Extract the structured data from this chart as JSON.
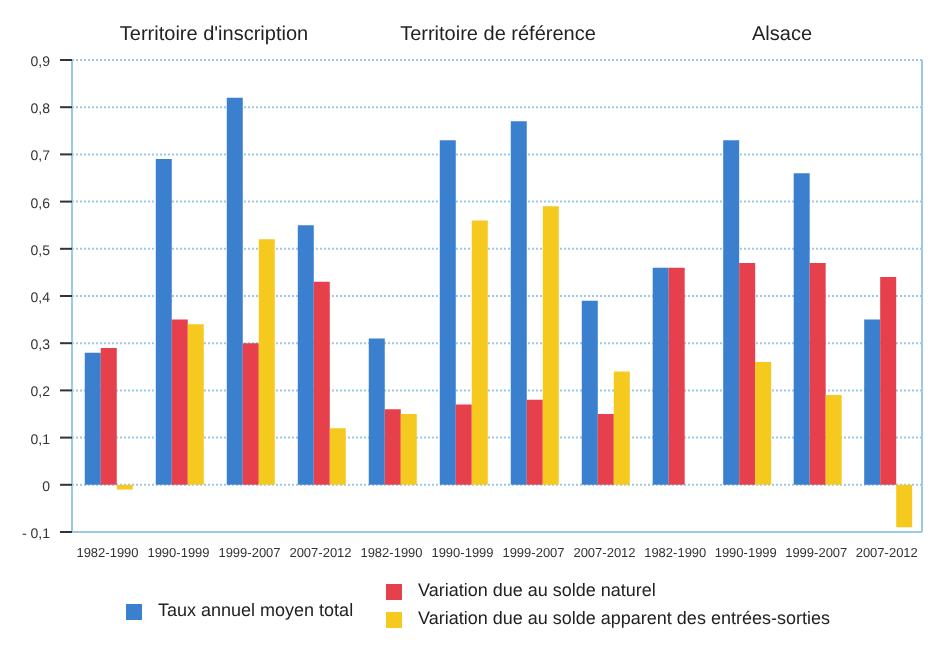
{
  "chart_data": [
    {
      "type": "bar",
      "title": "Territoire d'inscription",
      "categories": [
        "1982-1990",
        "1990-1999",
        "1999-2007",
        "2007-2012"
      ],
      "series": [
        {
          "name": "Taux annuel moyen total",
          "color": "#3a80cf",
          "values": [
            0.28,
            0.69,
            0.82,
            0.55
          ]
        },
        {
          "name": "Variation due au solde naturel",
          "color": "#e5404b",
          "values": [
            0.29,
            0.35,
            0.3,
            0.43
          ]
        },
        {
          "name": "Variation due au solde apparent des entrées-sorties",
          "color": "#f5c91e",
          "values": [
            -0.01,
            0.34,
            0.52,
            0.12
          ]
        }
      ],
      "ylim": [
        -0.1,
        0.9
      ],
      "yticks": [
        {
          "value": -0.1,
          "label": "- 0,1"
        },
        0,
        {
          "value": 0.1,
          "label": "0,1"
        },
        {
          "value": 0.2,
          "label": "0,2"
        },
        {
          "value": 0.3,
          "label": "0,3"
        },
        {
          "value": 0.4,
          "label": "0,4"
        },
        {
          "value": 0.5,
          "label": "0,5"
        },
        {
          "value": 0.6,
          "label": "0,6"
        },
        {
          "value": 0.7,
          "label": "0,7"
        },
        {
          "value": 0.8,
          "label": "0,8"
        },
        {
          "value": 0.9,
          "label": "0,9"
        }
      ],
      "grid": "y",
      "legend": "bottom"
    },
    {
      "type": "bar",
      "title": "Territoire de référence",
      "categories": [
        "1982-1990",
        "1990-1999",
        "1999-2007",
        "2007-2012"
      ],
      "series": [
        {
          "color": "#3a80cf",
          "values": [
            0.31,
            0.73,
            0.77,
            0.39
          ]
        },
        {
          "color": "#e5404b",
          "values": [
            0.16,
            0.17,
            0.18,
            0.15
          ]
        },
        {
          "color": "#f5c91e",
          "values": [
            0.15,
            0.56,
            0.59,
            0.24
          ]
        }
      ],
      "ylim": [
        -0.1,
        0.9
      ],
      "yticks": [
        -0.1,
        0,
        0.1,
        0.2,
        0.3,
        0.4,
        0.5,
        0.6,
        0.7,
        0.8,
        0.9
      ],
      "grid": "y",
      "tick_labels": "x"
    },
    {
      "type": "bar",
      "title": "Alsace",
      "categories": [
        "1982-1990",
        "1990-1999",
        "1999-2007",
        "2007-2012"
      ],
      "series": [
        {
          "color": "#3a80cf",
          "values": [
            0.46,
            0.73,
            0.66,
            0.35
          ]
        },
        {
          "color": "#e5404b",
          "values": [
            0.46,
            0.47,
            0.47,
            0.44
          ]
        },
        {
          "color": "#f5c91e",
          "values": [
            0,
            0.26,
            0.19,
            -0.09
          ]
        }
      ],
      "ylim": [
        -0.1,
        0.9
      ],
      "yticks": [
        -0.1,
        0,
        0.1,
        0.2,
        0.3,
        0.4,
        0.5,
        0.6,
        0.7,
        0.8,
        0.9
      ],
      "grid": "y",
      "tick_labels": "x"
    }
  ]
}
